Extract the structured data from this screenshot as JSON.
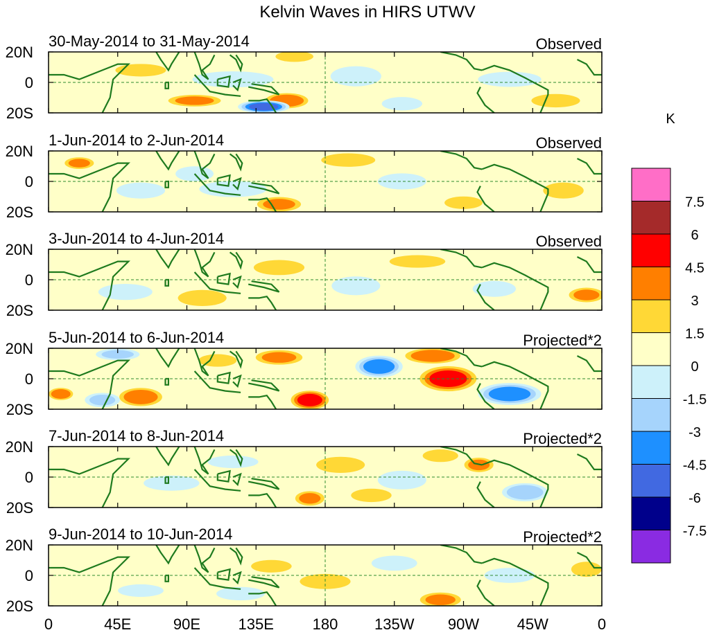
{
  "chart_data": {
    "type": "heatmap",
    "title": "Kelvin Waves in HIRS UTWV",
    "units": "K",
    "x_ticks": [
      "0",
      "45E",
      "90E",
      "135E",
      "180",
      "135W",
      "90W",
      "45W",
      "0"
    ],
    "y_ticks": [
      "20N",
      "0",
      "20S"
    ],
    "x_range_lon": [
      0,
      360
    ],
    "y_range_lat": [
      -20,
      20
    ],
    "colorbar": {
      "label": "K",
      "levels": [
        "7.5",
        "6",
        "4.5",
        "3",
        "1.5",
        "0",
        "-1.5",
        "-3",
        "-4.5",
        "-6",
        "-7.5"
      ],
      "colors": [
        "#ff6ec7",
        "#a52a2a",
        "#ff0000",
        "#ff7f00",
        "#ffd836",
        "#ffffc8",
        "#cdf1fa",
        "#a6d4fc",
        "#1e90ff",
        "#4169e1",
        "#00008b",
        "#8a2be2"
      ]
    },
    "panels": [
      {
        "date_range": "30-May-2014 to 31-May-2014",
        "type_label": "Observed",
        "blobs": [
          [
            160,
            17,
            14,
            4,
            2
          ],
          [
            155,
            -12,
            14,
            5,
            4
          ],
          [
            95,
            -12,
            18,
            4,
            3
          ],
          [
            140,
            -16,
            16,
            4,
            -6
          ],
          [
            120,
            2,
            30,
            6,
            -2
          ],
          [
            200,
            4,
            20,
            8,
            -1.5
          ],
          [
            60,
            8,
            20,
            5,
            1.5
          ],
          [
            300,
            2,
            25,
            6,
            -1.5
          ],
          [
            330,
            -12,
            18,
            5,
            2
          ],
          [
            230,
            -14,
            15,
            5,
            -2
          ]
        ]
      },
      {
        "date_range": "1-Jun-2014 to 2-Jun-2014",
        "type_label": "Observed",
        "blobs": [
          [
            20,
            12,
            10,
            4,
            3
          ],
          [
            150,
            -15,
            15,
            5,
            3
          ],
          [
            120,
            -5,
            25,
            6,
            -2
          ],
          [
            195,
            14,
            20,
            5,
            2
          ],
          [
            230,
            0,
            18,
            6,
            -2
          ],
          [
            95,
            5,
            15,
            6,
            -1.5
          ],
          [
            335,
            -6,
            15,
            6,
            2
          ],
          [
            60,
            -6,
            18,
            6,
            -2
          ],
          [
            270,
            -14,
            15,
            5,
            1.5
          ]
        ]
      },
      {
        "date_range": "3-Jun-2014 to 4-Jun-2014",
        "type_label": "Observed",
        "blobs": [
          [
            200,
            -4,
            18,
            7,
            -2
          ],
          [
            100,
            -12,
            18,
            6,
            2
          ],
          [
            350,
            -10,
            12,
            5,
            3
          ],
          [
            240,
            12,
            22,
            5,
            1.5
          ],
          [
            50,
            -8,
            20,
            6,
            -2
          ],
          [
            150,
            8,
            20,
            6,
            1.5
          ],
          [
            290,
            -6,
            16,
            6,
            -2
          ]
        ]
      },
      {
        "date_range": "5-Jun-2014 to 6-Jun-2014",
        "type_label": "Projected*2",
        "blobs": [
          [
            170,
            -14,
            12,
            6,
            5
          ],
          [
            260,
            0,
            18,
            8,
            5
          ],
          [
            60,
            -12,
            14,
            6,
            4
          ],
          [
            8,
            -10,
            8,
            4,
            4
          ],
          [
            215,
            8,
            15,
            7,
            -5
          ],
          [
            300,
            -10,
            20,
            7,
            -5
          ],
          [
            250,
            15,
            18,
            5,
            4
          ],
          [
            110,
            12,
            15,
            5,
            1.5
          ],
          [
            150,
            14,
            16,
            5,
            3
          ],
          [
            45,
            16,
            15,
            4,
            -3
          ],
          [
            35,
            -14,
            12,
            5,
            -3
          ]
        ]
      },
      {
        "date_range": "7-Jun-2014 to 8-Jun-2014",
        "type_label": "Projected*2",
        "blobs": [
          [
            190,
            8,
            18,
            6,
            2
          ],
          [
            170,
            -14,
            10,
            5,
            3
          ],
          [
            255,
            14,
            14,
            5,
            1.5
          ],
          [
            280,
            8,
            10,
            5,
            3
          ],
          [
            310,
            -10,
            15,
            6,
            -4
          ],
          [
            230,
            -2,
            18,
            7,
            -2
          ],
          [
            210,
            -12,
            15,
            5,
            2
          ],
          [
            80,
            -4,
            22,
            6,
            -1.5
          ],
          [
            120,
            10,
            20,
            5,
            -1.5
          ]
        ]
      },
      {
        "date_range": "9-Jun-2014 to 10-Jun-2014",
        "type_label": "Projected*2",
        "blobs": [
          [
            255,
            -16,
            14,
            5,
            3
          ],
          [
            180,
            -4,
            20,
            6,
            1.5
          ],
          [
            225,
            8,
            18,
            6,
            -1.5
          ],
          [
            300,
            0,
            20,
            6,
            -1.5
          ],
          [
            125,
            -12,
            18,
            5,
            -2
          ],
          [
            350,
            4,
            12,
            6,
            1.5
          ],
          [
            60,
            -10,
            18,
            5,
            -1.5
          ],
          [
            145,
            6,
            16,
            5,
            1.5
          ]
        ]
      }
    ]
  }
}
